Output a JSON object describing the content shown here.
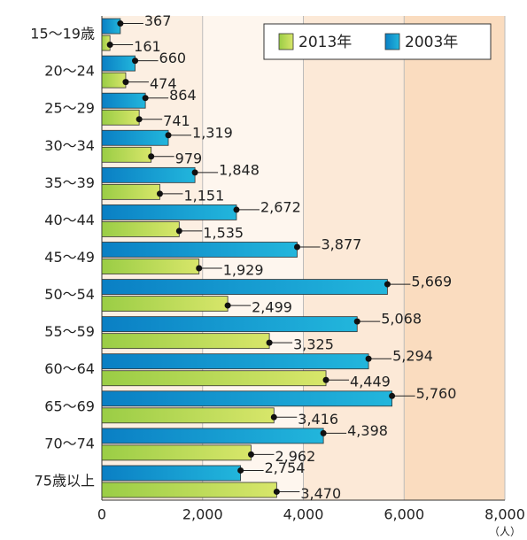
{
  "chart_data": {
    "type": "hbar",
    "categories": [
      "15～19歳",
      "20～24",
      "25～29",
      "30～34",
      "35～39",
      "40～44",
      "45～49",
      "50～54",
      "55～59",
      "60～64",
      "65～69",
      "70～74",
      "75歳以上"
    ],
    "series": [
      {
        "name": "2013年",
        "color": "#9acd45",
        "values": [
          161,
          474,
          741,
          979,
          1151,
          1535,
          1929,
          2499,
          3325,
          4449,
          3416,
          2962,
          3470
        ],
        "value_labels": [
          "161",
          "474",
          "741",
          "979",
          "1,151",
          "1,535",
          "1,929",
          "2,499",
          "3,325",
          "4,449",
          "3,416",
          "2,962",
          "3,470"
        ]
      },
      {
        "name": "2003年",
        "color": "#0a7fc4",
        "values": [
          367,
          660,
          864,
          1319,
          1848,
          2672,
          3877,
          5669,
          5068,
          5294,
          5760,
          4398,
          2754
        ],
        "value_labels": [
          "367",
          "660",
          "864",
          "1,319",
          "1,848",
          "2,672",
          "3,877",
          "5,669",
          "5,068",
          "5,294",
          "5,760",
          "4,398",
          "2,754"
        ]
      }
    ],
    "xlim": [
      0,
      8000
    ],
    "xticks": [
      0,
      {
        "value": 2000,
        "label": "2,000"
      },
      {
        "value": 4000,
        "label": "4,000"
      },
      {
        "value": 6000,
        "label": "6,000"
      },
      {
        "value": 8000,
        "label": "8,000"
      }
    ],
    "xlabel": "（人）",
    "legend": "top-right"
  }
}
